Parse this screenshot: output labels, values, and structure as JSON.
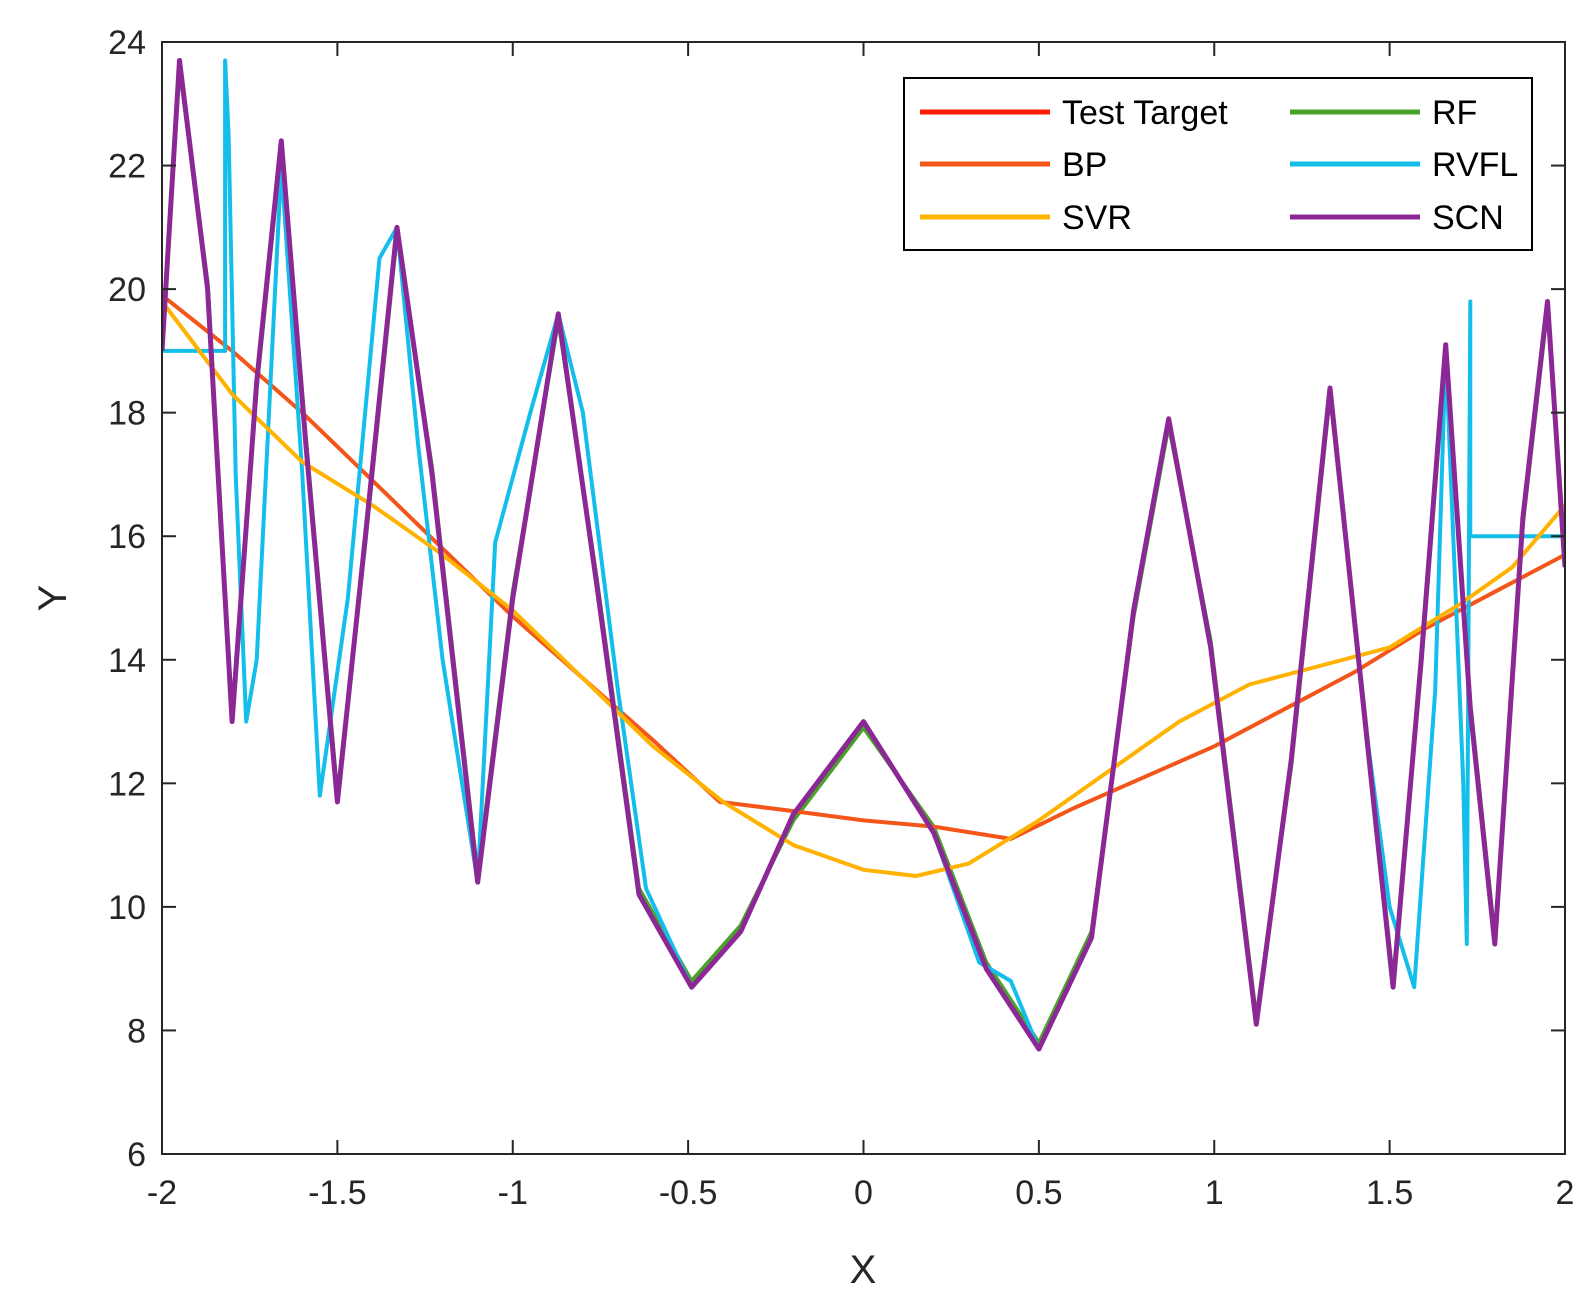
{
  "chart_data": {
    "type": "line",
    "title": "",
    "xlabel": "X",
    "ylabel": "Y",
    "xlim": [
      -2,
      2
    ],
    "ylim": [
      6,
      24
    ],
    "xticks": [
      -2,
      -1.5,
      -1,
      -0.5,
      0,
      0.5,
      1,
      1.5,
      2
    ],
    "xtick_labels": [
      "-2",
      "-1.5",
      "-1",
      "-0.5",
      "0",
      "0.5",
      "1",
      "1.5",
      "2"
    ],
    "yticks": [
      6,
      8,
      10,
      12,
      14,
      16,
      18,
      20,
      22,
      24
    ],
    "ytick_labels": [
      "6",
      "8",
      "10",
      "12",
      "14",
      "16",
      "18",
      "20",
      "22",
      "24"
    ],
    "grid": false,
    "legend": {
      "position": "top-right",
      "columns": 2,
      "entries": [
        "Test Target",
        "RF",
        "BP",
        "RVFL",
        "SVR",
        "SCN"
      ]
    },
    "series": [
      {
        "name": "Test Target",
        "color": "#ff1a00",
        "x": [
          -2.0,
          -1.95,
          -1.87,
          -1.8,
          -1.73,
          -1.66,
          -1.59,
          -1.5,
          -1.42,
          -1.33,
          -1.23,
          -1.1,
          -1.0,
          -0.87,
          -0.76,
          -0.64,
          -0.49,
          -0.35,
          -0.2,
          0.0,
          0.2,
          0.35,
          0.5,
          0.65,
          0.77,
          0.87,
          0.99,
          1.12,
          1.22,
          1.33,
          1.43,
          1.51,
          1.59,
          1.66,
          1.73,
          1.8,
          1.88,
          1.95,
          2.0
        ],
        "y": [
          19.0,
          23.7,
          20.0,
          13.0,
          18.5,
          22.4,
          17.5,
          11.7,
          16.0,
          21.0,
          17.0,
          10.4,
          15.0,
          19.6,
          15.2,
          10.2,
          8.7,
          9.6,
          11.5,
          13.0,
          11.2,
          9.0,
          7.7,
          9.5,
          14.8,
          17.9,
          14.2,
          8.1,
          12.4,
          18.4,
          13.0,
          8.7,
          14.0,
          19.1,
          13.2,
          9.4,
          16.3,
          19.8,
          15.5
        ]
      },
      {
        "name": "RF",
        "color": "#4aa329",
        "x": [
          -2.0,
          -1.95,
          -1.87,
          -1.8,
          -1.73,
          -1.66,
          -1.59,
          -1.5,
          -1.42,
          -1.33,
          -1.23,
          -1.1,
          -1.0,
          -0.87,
          -0.76,
          -0.64,
          -0.49,
          -0.35,
          -0.2,
          0.0,
          0.2,
          0.35,
          0.5,
          0.65,
          0.77,
          0.87,
          0.99,
          1.12,
          1.22,
          1.33,
          1.43,
          1.51,
          1.59,
          1.66,
          1.73,
          1.8,
          1.88,
          1.95,
          2.0
        ],
        "y": [
          19.1,
          23.6,
          20.1,
          13.1,
          18.4,
          22.3,
          17.6,
          11.8,
          15.9,
          20.9,
          17.1,
          10.5,
          15.1,
          19.5,
          15.3,
          10.3,
          8.8,
          9.7,
          11.4,
          12.9,
          11.3,
          9.1,
          7.8,
          9.6,
          14.7,
          17.8,
          14.3,
          8.2,
          12.3,
          18.3,
          13.1,
          8.8,
          13.9,
          19.0,
          13.3,
          9.5,
          16.2,
          19.7,
          15.6
        ]
      },
      {
        "name": "BP",
        "color": "#f4561a",
        "x": [
          -2.0,
          -1.8,
          -1.6,
          -1.4,
          -1.2,
          -1.0,
          -0.8,
          -0.6,
          -0.41,
          -0.2,
          0.0,
          0.2,
          0.42,
          0.6,
          0.8,
          1.0,
          1.2,
          1.4,
          1.6,
          1.8,
          2.0
        ],
        "y": [
          19.9,
          19.0,
          18.0,
          16.9,
          15.8,
          14.7,
          13.7,
          12.7,
          11.7,
          11.55,
          11.4,
          11.3,
          11.1,
          11.6,
          12.1,
          12.6,
          13.2,
          13.8,
          14.5,
          15.1,
          15.7
        ]
      },
      {
        "name": "RVFL",
        "color": "#14beeb",
        "x": [
          -2.0,
          -1.82,
          -1.82,
          -1.81,
          -1.79,
          -1.76,
          -1.73,
          -1.66,
          -1.6,
          -1.55,
          -1.47,
          -1.38,
          -1.33,
          -1.27,
          -1.2,
          -1.1,
          -1.05,
          -0.95,
          -0.87,
          -0.8,
          -0.7,
          -0.62,
          -0.49,
          -0.35,
          -0.2,
          0.0,
          0.2,
          0.33,
          0.42,
          0.5,
          0.65,
          0.77,
          0.87,
          0.99,
          1.12,
          1.22,
          1.33,
          1.43,
          1.5,
          1.57,
          1.63,
          1.66,
          1.71,
          1.72,
          1.73,
          1.73,
          2.0
        ],
        "y": [
          19.0,
          19.0,
          23.7,
          22.5,
          17.0,
          13.0,
          14.0,
          22.0,
          17.0,
          11.8,
          15.0,
          20.5,
          21.0,
          17.5,
          14.0,
          10.4,
          15.9,
          18.0,
          19.6,
          18.0,
          13.5,
          10.3,
          8.7,
          9.6,
          11.5,
          13.0,
          11.2,
          9.1,
          8.8,
          7.7,
          9.5,
          14.8,
          17.9,
          14.2,
          8.1,
          12.4,
          18.4,
          13.0,
          10.0,
          8.7,
          13.5,
          19.0,
          12.0,
          9.4,
          19.8,
          16.0,
          16.0
        ]
      },
      {
        "name": "SVR",
        "color": "#ffb300",
        "x": [
          -2.0,
          -1.8,
          -1.6,
          -1.4,
          -1.2,
          -1.0,
          -0.8,
          -0.6,
          -0.4,
          -0.2,
          0.0,
          0.15,
          0.3,
          0.5,
          0.7,
          0.9,
          1.1,
          1.3,
          1.5,
          1.7,
          1.85,
          2.0
        ],
        "y": [
          19.8,
          18.3,
          17.2,
          16.5,
          15.7,
          14.8,
          13.7,
          12.6,
          11.7,
          11.0,
          10.6,
          10.5,
          10.7,
          11.4,
          12.2,
          13.0,
          13.6,
          13.9,
          14.2,
          14.9,
          15.5,
          16.5
        ]
      },
      {
        "name": "SCN",
        "color": "#8c2896",
        "x": [
          -2.0,
          -1.95,
          -1.87,
          -1.8,
          -1.73,
          -1.66,
          -1.59,
          -1.5,
          -1.42,
          -1.33,
          -1.23,
          -1.1,
          -1.0,
          -0.87,
          -0.76,
          -0.64,
          -0.49,
          -0.35,
          -0.2,
          0.0,
          0.2,
          0.35,
          0.5,
          0.65,
          0.77,
          0.87,
          0.99,
          1.12,
          1.22,
          1.33,
          1.43,
          1.51,
          1.59,
          1.66,
          1.73,
          1.8,
          1.88,
          1.95,
          2.0
        ],
        "y": [
          19.0,
          23.7,
          20.0,
          13.0,
          18.5,
          22.4,
          17.5,
          11.7,
          16.0,
          21.0,
          17.0,
          10.4,
          15.0,
          19.6,
          15.2,
          10.2,
          8.7,
          9.6,
          11.5,
          13.0,
          11.2,
          9.0,
          7.7,
          9.5,
          14.8,
          17.9,
          14.2,
          8.1,
          12.4,
          18.4,
          13.0,
          8.7,
          14.0,
          19.1,
          13.2,
          9.4,
          16.3,
          19.8,
          15.5
        ]
      }
    ]
  }
}
